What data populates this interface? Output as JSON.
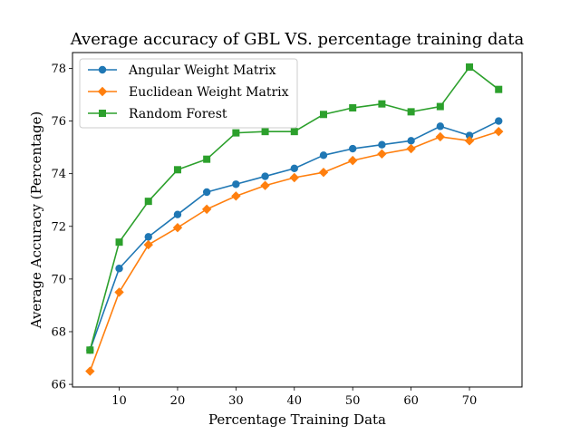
{
  "chart_data": {
    "type": "line",
    "title": "Average accuracy of GBL VS. percentage training data",
    "xlabel": "Percentage Training Data",
    "ylabel": "Average Accuracy (Percentage)",
    "xlim": [
      2,
      79
    ],
    "ylim": [
      65.9,
      78.6
    ],
    "xticks": [
      10,
      20,
      30,
      40,
      50,
      60,
      70
    ],
    "yticks": [
      66,
      68,
      70,
      72,
      74,
      76,
      78
    ],
    "grid": false,
    "legend_position": "top-left",
    "x": [
      5,
      10,
      15,
      20,
      25,
      30,
      35,
      40,
      45,
      50,
      55,
      60,
      65,
      70,
      75
    ],
    "series": [
      {
        "name": "Angular Weight Matrix",
        "color": "#1f77b4",
        "marker": "circle",
        "values": [
          67.3,
          70.4,
          71.6,
          72.45,
          73.3,
          73.6,
          73.9,
          74.2,
          74.7,
          74.95,
          75.1,
          75.25,
          75.8,
          75.45,
          76.0
        ]
      },
      {
        "name": "Euclidean Weight Matrix",
        "color": "#ff7f0e",
        "marker": "diamond",
        "values": [
          66.5,
          69.5,
          71.3,
          71.95,
          72.65,
          73.15,
          73.55,
          73.85,
          74.05,
          74.5,
          74.75,
          74.95,
          75.4,
          75.25,
          75.6
        ]
      },
      {
        "name": "Random Forest",
        "color": "#2ca02c",
        "marker": "square",
        "values": [
          67.3,
          71.4,
          72.95,
          74.15,
          74.55,
          75.55,
          75.6,
          75.6,
          76.25,
          76.5,
          76.65,
          76.35,
          76.55,
          78.05,
          77.2
        ]
      }
    ]
  }
}
